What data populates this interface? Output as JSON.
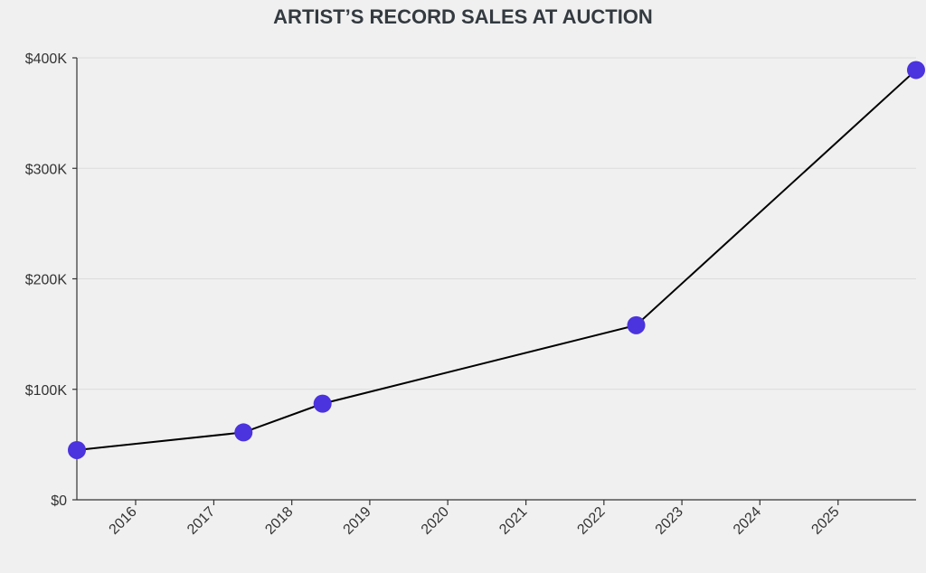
{
  "chart_data": {
    "type": "line",
    "title": "ARTIST’S RECORD SALES AT AUCTION",
    "xlabel": "",
    "ylabel": "",
    "x_axis": {
      "type": "date",
      "range": [
        "2015-04-01",
        "2026-01-01"
      ],
      "tick_labels": [
        "2016",
        "2017",
        "2018",
        "2019",
        "2020",
        "2021",
        "2022",
        "2023",
        "2024",
        "2025"
      ]
    },
    "y_axis": {
      "range": [
        0,
        400000
      ],
      "tick_values": [
        0,
        100000,
        200000,
        300000,
        400000
      ],
      "tick_labels": [
        "$0",
        "$100K",
        "$200K",
        "$300K",
        "$400K"
      ]
    },
    "grid": "horizontal",
    "series": [
      {
        "points": [
          {
            "x": "2015-04-01",
            "y": 45000
          },
          {
            "x": "2017-05-20",
            "y": 61000
          },
          {
            "x": "2018-05-25",
            "y": 87000
          },
          {
            "x": "2022-06-01",
            "y": 158000
          },
          {
            "x": "2026-01-01",
            "y": 389000
          }
        ]
      }
    ],
    "colors": {
      "line": "#000000",
      "marker": "#4b33dd",
      "background": "#f0f0f0",
      "text": "#333a40"
    }
  }
}
